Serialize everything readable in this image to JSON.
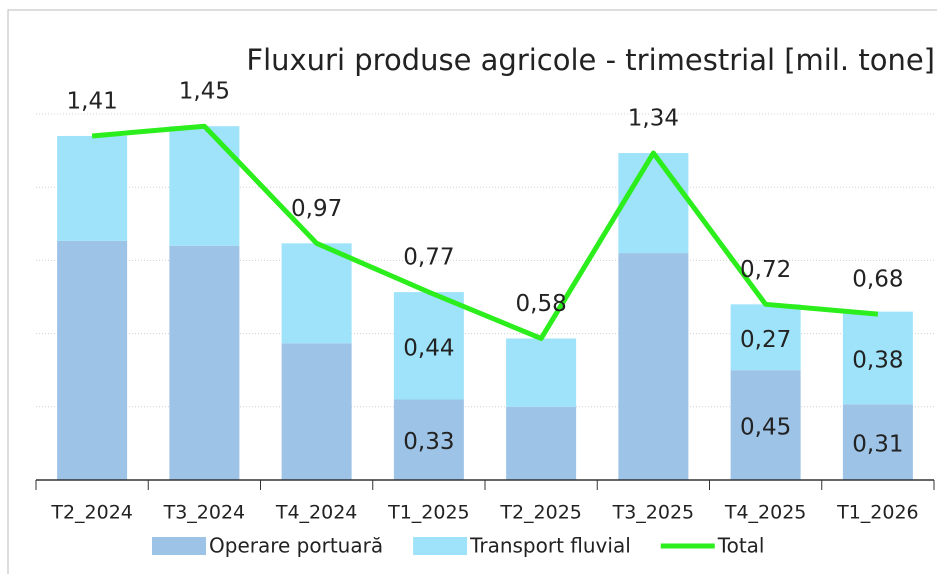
{
  "chart_data": {
    "type": "bar",
    "stacked": true,
    "title": "Fluxuri produse agricole - trimestrial [mil. tone]",
    "categories": [
      "T2_2024",
      "T3_2024",
      "T4_2024",
      "T1_2025",
      "T2_2025",
      "T3_2025",
      "T4_2025",
      "T1_2026"
    ],
    "series": [
      {
        "name": "Operare portuară",
        "color": "#9dc3e6",
        "values": [
          0.98,
          0.96,
          0.56,
          0.33,
          0.3,
          0.93,
          0.45,
          0.31
        ],
        "value_labels": [
          null,
          null,
          null,
          "0,33",
          null,
          null,
          "0,45",
          "0,31"
        ]
      },
      {
        "name": "Transport fluvial",
        "color": "#9ee3fa",
        "values": [
          0.43,
          0.49,
          0.41,
          0.44,
          0.28,
          0.41,
          0.27,
          0.38
        ],
        "value_labels": [
          null,
          null,
          null,
          "0,44",
          null,
          null,
          "0,27",
          "0,38"
        ]
      },
      {
        "name": "Total",
        "type": "line",
        "color": "#2cee1c",
        "values": [
          1.41,
          1.45,
          0.97,
          0.77,
          0.58,
          1.34,
          0.72,
          0.68
        ],
        "value_labels": [
          "1,41",
          "1,45",
          "0,97",
          "0,77",
          "0,58",
          "1,34",
          "0,72",
          "0,68"
        ]
      }
    ],
    "ylim": [
      0,
      1.5
    ],
    "yticks": [
      0,
      0.3,
      0.6,
      0.9,
      1.2,
      1.5
    ],
    "grid": true,
    "legend": "bottom"
  }
}
